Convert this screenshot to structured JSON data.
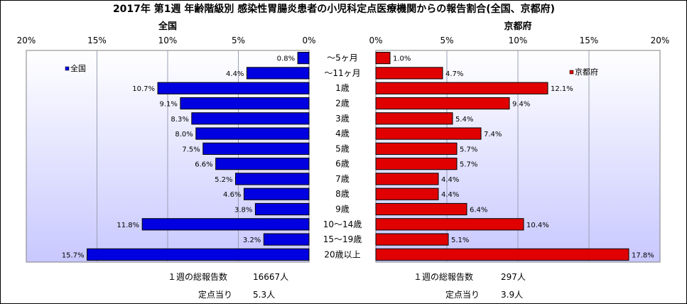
{
  "title": "2017年 第1週 年齢階級別 感染性胃腸炎患者の小児科定点医療機関からの報告割合(全国、京都府)",
  "chart_data": [
    {
      "type": "bar",
      "orientation": "horizontal",
      "direction": "right-to-left",
      "title": "全国",
      "xlim": [
        0,
        20
      ],
      "x_ticks": [
        "20%",
        "15%",
        "10%",
        "5%",
        "0%"
      ],
      "grid": true,
      "legend": {
        "label": "全国",
        "position": "top-left"
      },
      "categories": [
        "～5ヶ月",
        "～11ヶ月",
        "1歳",
        "2歳",
        "3歳",
        "4歳",
        "5歳",
        "6歳",
        "7歳",
        "8歳",
        "9歳",
        "10～14歳",
        "15～19歳",
        "20歳以上"
      ],
      "values": [
        0.8,
        4.4,
        10.7,
        9.1,
        8.3,
        8.0,
        7.5,
        6.6,
        5.2,
        4.6,
        3.8,
        11.8,
        3.2,
        15.7
      ],
      "value_labels": [
        "0.8%",
        "4.4%",
        "10.7%",
        "9.1%",
        "8.3%",
        "8.0%",
        "7.5%",
        "6.6%",
        "5.2%",
        "4.6%",
        "3.8%",
        "11.8%",
        "3.2%",
        "15.7%"
      ],
      "color": "#0000e0"
    },
    {
      "type": "bar",
      "orientation": "horizontal",
      "direction": "left-to-right",
      "title": "京都府",
      "xlim": [
        0,
        20
      ],
      "x_ticks": [
        "0%",
        "5%",
        "10%",
        "15%",
        "20%"
      ],
      "grid": true,
      "legend": {
        "label": "京都府",
        "position": "top-right"
      },
      "categories": [
        "～5ヶ月",
        "～11ヶ月",
        "1歳",
        "2歳",
        "3歳",
        "4歳",
        "5歳",
        "6歳",
        "7歳",
        "8歳",
        "9歳",
        "10～14歳",
        "15～19歳",
        "20歳以上"
      ],
      "values": [
        1.0,
        4.7,
        12.1,
        9.4,
        5.4,
        7.4,
        5.7,
        5.7,
        4.4,
        4.4,
        6.4,
        10.4,
        5.1,
        17.8
      ],
      "value_labels": [
        "1.0%",
        "4.7%",
        "12.1%",
        "9.4%",
        "5.4%",
        "7.4%",
        "5.7%",
        "5.7%",
        "4.4%",
        "4.4%",
        "6.4%",
        "10.4%",
        "5.1%",
        "17.8%"
      ],
      "color": "#e00000"
    }
  ],
  "footer": {
    "national": {
      "total_label": "１週の総報告数",
      "total_value": "16667人",
      "per_label": "定点当り",
      "per_value": "5.3人"
    },
    "kyoto": {
      "total_label": "１週の総報告数",
      "total_value": "297人",
      "per_label": "定点当り",
      "per_value": "3.9人"
    }
  },
  "colors": {
    "plot_bg_top": "#ffffff",
    "plot_bg_bottom": "#c8c8ff",
    "grid": "#9aa0b4"
  }
}
